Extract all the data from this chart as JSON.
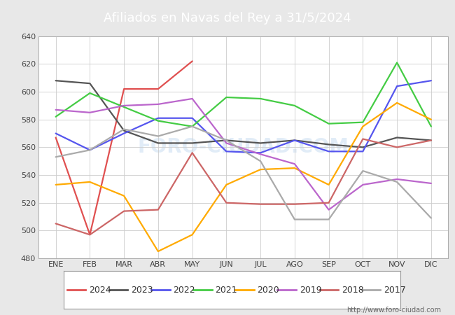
{
  "title": "Afiliados en Navas del Rey a 31/5/2024",
  "background_color": "#e8e8e8",
  "plot_background_color": "#ffffff",
  "title_bg_color": "#5b9bd5",
  "ylim": [
    480,
    640
  ],
  "yticks": [
    480,
    500,
    520,
    540,
    560,
    580,
    600,
    620,
    640
  ],
  "months": [
    "ENE",
    "FEB",
    "MAR",
    "ABR",
    "MAY",
    "JUN",
    "JUL",
    "AGO",
    "SEP",
    "OCT",
    "NOV",
    "DIC"
  ],
  "watermark": "FORO-CIUDAD.COM",
  "url": "http://www.foro-ciudad.com",
  "series": {
    "2024": {
      "color": "#e05050",
      "data": [
        567,
        497,
        602,
        602,
        622,
        null,
        null,
        null,
        null,
        null,
        null,
        null
      ]
    },
    "2023": {
      "color": "#555555",
      "data": [
        608,
        606,
        572,
        563,
        563,
        565,
        563,
        565,
        562,
        560,
        567,
        565
      ]
    },
    "2022": {
      "color": "#5555ee",
      "data": [
        570,
        558,
        570,
        581,
        581,
        557,
        556,
        565,
        557,
        557,
        604,
        608
      ]
    },
    "2021": {
      "color": "#44cc44",
      "data": [
        582,
        599,
        589,
        579,
        575,
        596,
        595,
        590,
        577,
        578,
        621,
        575
      ]
    },
    "2020": {
      "color": "#ffaa00",
      "data": [
        533,
        535,
        525,
        485,
        497,
        533,
        544,
        545,
        533,
        575,
        592,
        580
      ]
    },
    "2019": {
      "color": "#bb66cc",
      "data": [
        587,
        585,
        590,
        591,
        595,
        563,
        555,
        548,
        515,
        533,
        537,
        534
      ]
    },
    "2018": {
      "color": "#cc6666",
      "data": [
        505,
        497,
        514,
        515,
        556,
        520,
        519,
        519,
        520,
        566,
        560,
        565
      ]
    },
    "2017": {
      "color": "#aaaaaa",
      "data": [
        553,
        558,
        573,
        568,
        575,
        565,
        550,
        508,
        508,
        543,
        535,
        509
      ]
    }
  },
  "legend_order": [
    "2024",
    "2023",
    "2022",
    "2021",
    "2020",
    "2019",
    "2018",
    "2017"
  ]
}
